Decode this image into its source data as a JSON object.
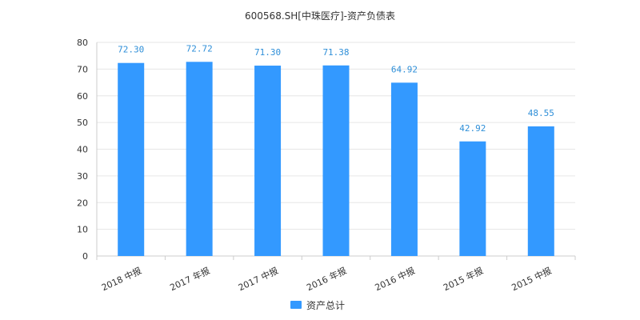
{
  "chart_data": {
    "type": "bar",
    "title": "600568.SH[中珠医疗]-资产负债表",
    "categories": [
      "2018 中报",
      "2017 年报",
      "2017 中报",
      "2016 年报",
      "2016 中报",
      "2015 年报",
      "2015 中报"
    ],
    "series": [
      {
        "name": "资产总计",
        "values": [
          72.3,
          72.72,
          71.3,
          71.38,
          64.92,
          42.92,
          48.55
        ],
        "labels": [
          "72.30",
          "72.72",
          "71.30",
          "71.38",
          "64.92",
          "42.92",
          "48.55"
        ],
        "color": "#3399ff"
      }
    ],
    "xlabel": "",
    "ylabel": "",
    "ylim": [
      0,
      80
    ],
    "yticks": [
      "0",
      "10",
      "20",
      "30",
      "40",
      "50",
      "60",
      "70",
      "80"
    ],
    "grid": true,
    "legend_position": "bottom-center",
    "label_color": "#2f8fd8"
  }
}
